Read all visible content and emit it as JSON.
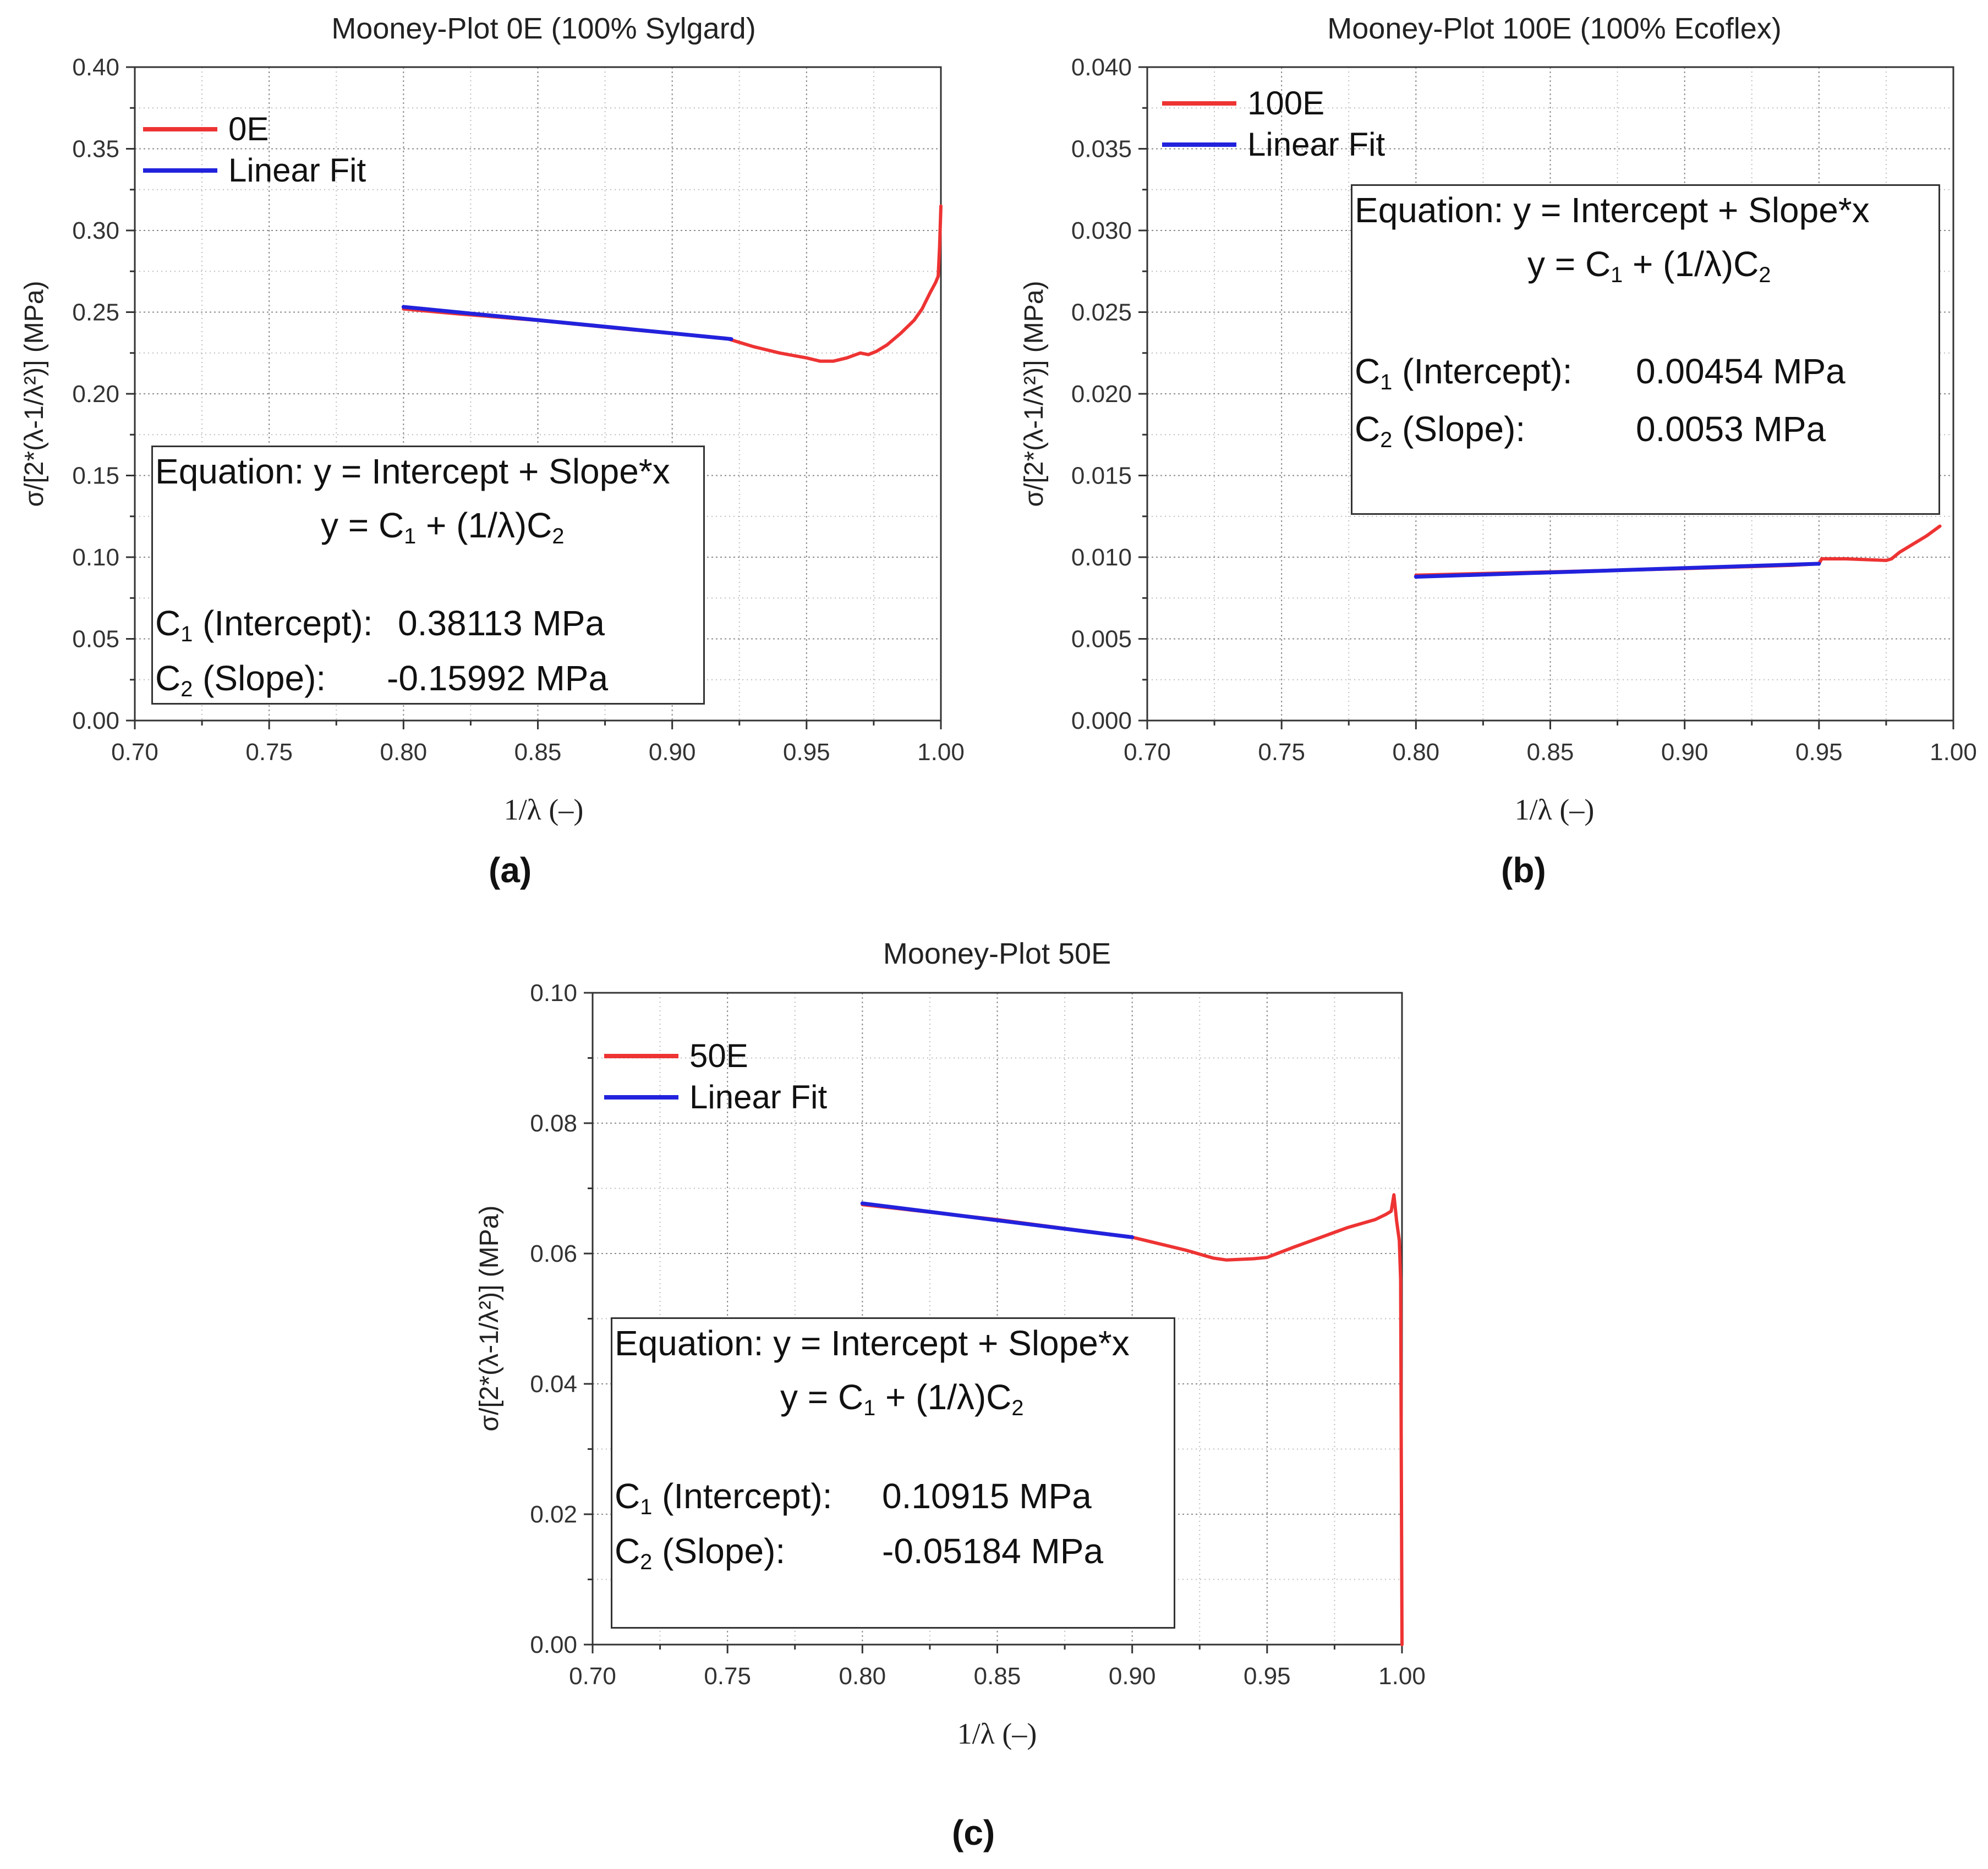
{
  "chart_data": [
    {
      "id": "a",
      "type": "line",
      "title": "Mooney-Plot 0E (100% Sylgard)",
      "xlabel": "1/λ (–)",
      "ylabel": "σ/[2*(λ-1/λ²)] (MPa)",
      "xlim": [
        0.7,
        1.0
      ],
      "ylim": [
        0.0,
        0.4
      ],
      "xticks": [
        "0.70",
        "0.75",
        "0.80",
        "0.85",
        "0.90",
        "0.95",
        "1.00"
      ],
      "yticks": [
        "0.00",
        "0.05",
        "0.10",
        "0.15",
        "0.20",
        "0.25",
        "0.30",
        "0.35",
        "0.40"
      ],
      "grid": true,
      "legend_position": "top-left",
      "series": [
        {
          "name": "0E",
          "color": "#ee3333",
          "x": [
            0.8,
            0.82,
            0.85,
            0.88,
            0.9,
            0.92,
            0.93,
            0.94,
            0.95,
            0.955,
            0.96,
            0.965,
            0.97,
            0.973,
            0.976,
            0.98,
            0.985,
            0.99,
            0.993,
            0.996,
            0.998,
            0.999,
            0.9995,
            1.0
          ],
          "y": [
            0.252,
            0.249,
            0.245,
            0.24,
            0.237,
            0.234,
            0.229,
            0.225,
            0.222,
            0.22,
            0.22,
            0.222,
            0.225,
            0.224,
            0.226,
            0.23,
            0.237,
            0.245,
            0.252,
            0.262,
            0.268,
            0.272,
            0.29,
            0.315
          ]
        },
        {
          "name": "Linear Fit",
          "color": "#2222dd",
          "x": [
            0.8,
            0.922
          ],
          "y": [
            0.2532,
            0.2335
          ]
        }
      ],
      "annotation": {
        "equation": "Equation: y = Intercept + Slope*x",
        "model": "y = C₁ + (1/λ)C₂",
        "c1_label": "C₁ (Intercept):",
        "c1_value": "0.38113 MPa",
        "c2_label": "C₂ (Slope):",
        "c2_value": "-0.15992 MPa"
      },
      "panel_label": "(a)"
    },
    {
      "id": "b",
      "type": "line",
      "title": "Mooney-Plot 100E (100% Ecoflex)",
      "xlabel": "1/λ (–)",
      "ylabel": "σ/[2*(λ-1/λ²)] (MPa)",
      "xlim": [
        0.7,
        1.0
      ],
      "ylim": [
        0.0,
        0.04
      ],
      "xticks": [
        "0.70",
        "0.75",
        "0.80",
        "0.85",
        "0.90",
        "0.95",
        "1.00"
      ],
      "yticks": [
        "0.000",
        "0.005",
        "0.010",
        "0.015",
        "0.020",
        "0.025",
        "0.030",
        "0.035",
        "0.040"
      ],
      "grid": true,
      "legend_position": "top-left",
      "series": [
        {
          "name": "100E",
          "color": "#ee3333",
          "x": [
            0.8,
            0.85,
            0.9,
            0.94,
            0.95,
            0.951,
            0.96,
            0.975,
            0.977,
            0.98,
            0.985,
            0.99,
            0.995
          ],
          "y": [
            0.0089,
            0.0091,
            0.0093,
            0.0095,
            0.0096,
            0.0099,
            0.0099,
            0.0098,
            0.0099,
            0.0103,
            0.0108,
            0.0113,
            0.0119
          ]
        },
        {
          "name": "Linear Fit",
          "color": "#2222dd",
          "x": [
            0.8,
            0.95
          ],
          "y": [
            0.0088,
            0.0096
          ]
        }
      ],
      "annotation": {
        "equation": "Equation: y = Intercept + Slope*x",
        "model": "y = C₁ + (1/λ)C₂",
        "c1_label": "C₁ (Intercept):",
        "c1_value": "0.00454 MPa",
        "c2_label": "C₂ (Slope):",
        "c2_value": "0.0053 MPa"
      },
      "panel_label": "(b)"
    },
    {
      "id": "c",
      "type": "line",
      "title": "Mooney-Plot 50E",
      "xlabel": "1/λ (–)",
      "ylabel": "σ/[2*(λ-1/λ²)] (MPa)",
      "xlim": [
        0.7,
        1.0
      ],
      "ylim": [
        0.0,
        0.1
      ],
      "xticks": [
        "0.70",
        "0.75",
        "0.80",
        "0.85",
        "0.90",
        "0.95",
        "1.00"
      ],
      "yticks": [
        "0.00",
        "0.02",
        "0.04",
        "0.06",
        "0.08",
        "0.10"
      ],
      "grid": true,
      "legend_position": "top-left",
      "series": [
        {
          "name": "50E",
          "color": "#ee3333",
          "x": [
            0.8,
            0.85,
            0.9,
            0.92,
            0.93,
            0.935,
            0.945,
            0.95,
            0.96,
            0.97,
            0.98,
            0.99,
            0.994,
            0.996,
            0.997,
            0.998,
            0.999,
            0.9995,
            1.0
          ],
          "y": [
            0.0675,
            0.0652,
            0.0625,
            0.0605,
            0.0593,
            0.059,
            0.0592,
            0.0594,
            0.061,
            0.0625,
            0.064,
            0.0652,
            0.066,
            0.0665,
            0.069,
            0.065,
            0.062,
            0.056,
            0.0
          ]
        },
        {
          "name": "Linear Fit",
          "color": "#2222dd",
          "x": [
            0.8,
            0.9
          ],
          "y": [
            0.0677,
            0.0625
          ]
        }
      ],
      "annotation": {
        "equation": "Equation: y = Intercept + Slope*x",
        "model": "y = C₁ + (1/λ)C₂",
        "c1_label": "C₁ (Intercept):",
        "c1_value": "0.10915 MPa",
        "c2_label": "C₂ (Slope):",
        "c2_value": "-0.05184 MPa"
      },
      "panel_label": "(c)"
    }
  ]
}
